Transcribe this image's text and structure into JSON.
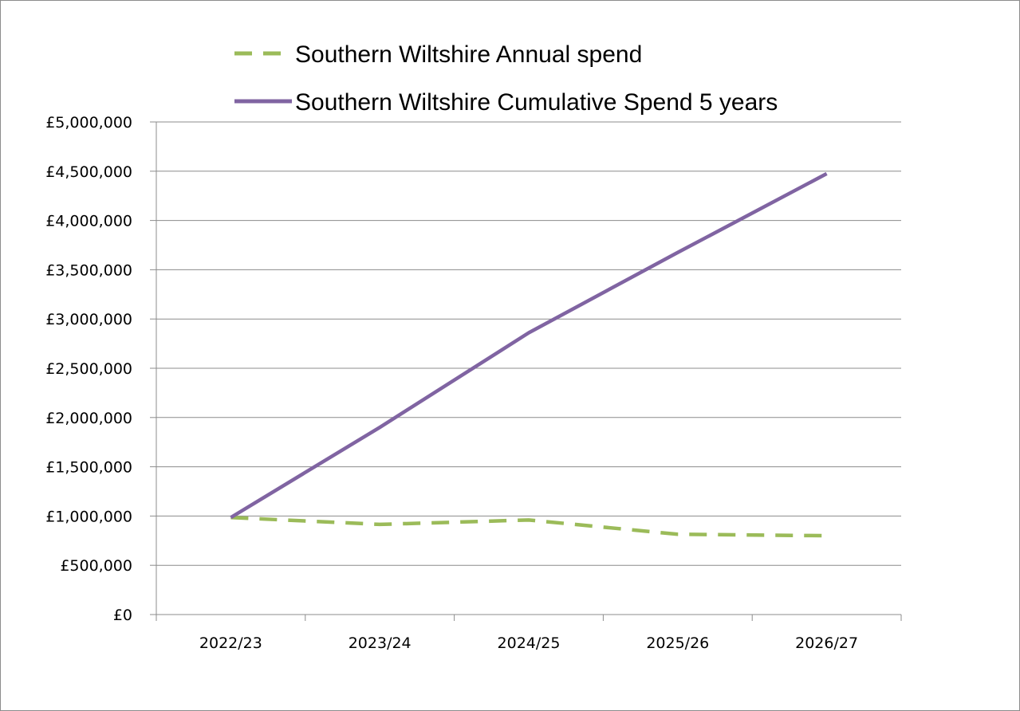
{
  "chart_data": {
    "type": "line",
    "categories": [
      "2022/23",
      "2023/24",
      "2024/25",
      "2025/26",
      "2026/27"
    ],
    "series": [
      {
        "name": "Southern Wiltshire Annual spend",
        "values": [
          985000,
          915000,
          960000,
          815000,
          800000
        ],
        "color": "#9bbb59",
        "dash": "dashed"
      },
      {
        "name": "Southern Wiltshire Cumulative Spend 5 years",
        "values": [
          985000,
          1900000,
          2860000,
          3675000,
          4475000
        ],
        "color": "#8064a2",
        "dash": "solid"
      }
    ],
    "ylim": [
      0,
      5000000
    ],
    "ytick_step": 500000,
    "ytick_labels": [
      "£0",
      "£500,000",
      "£1,000,000",
      "£1,500,000",
      "£2,000,000",
      "£2,500,000",
      "£3,000,000",
      "£3,500,000",
      "£4,000,000",
      "£4,500,000",
      "£5,000,000"
    ],
    "title": "",
    "xlabel": "",
    "ylabel": "",
    "grid": "horizontal",
    "legend_position": "top"
  }
}
